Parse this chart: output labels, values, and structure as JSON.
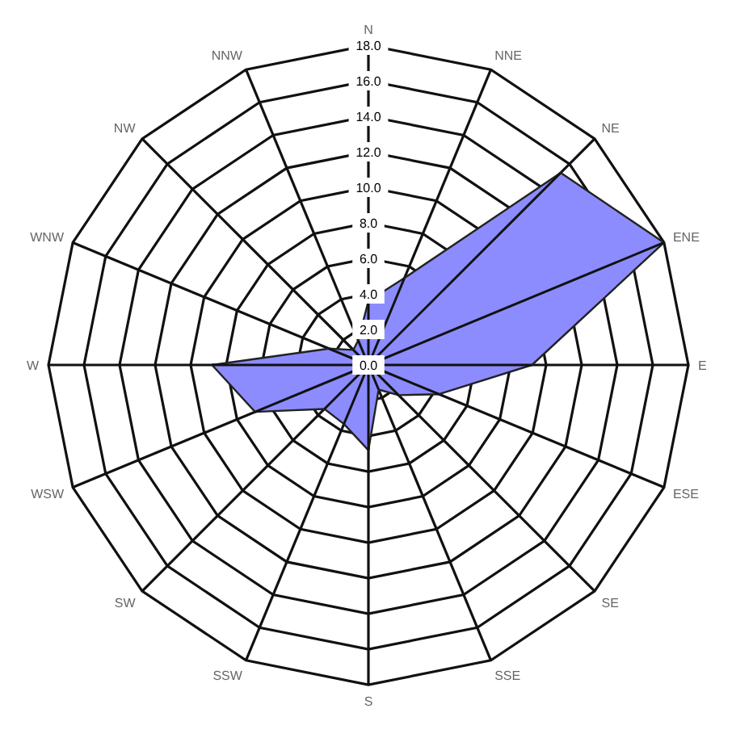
{
  "chart_data": {
    "type": "radar",
    "categories": [
      "N",
      "NNE",
      "NE",
      "ENE",
      "E",
      "ESE",
      "SE",
      "SSE",
      "S",
      "SSW",
      "SW",
      "WSW",
      "W",
      "WNW",
      "NW",
      "NNW"
    ],
    "series": [
      {
        "color": "#8c8cff",
        "values": [
          3.6,
          5.3,
          15.3,
          18,
          9.2,
          4.3,
          2.4,
          1.5,
          4.8,
          3.6,
          3.5,
          6.9,
          8.8,
          2.4,
          1.2,
          1.5
        ]
      }
    ],
    "ylim": [
      0,
      18
    ],
    "yticks": [
      {
        "value": 0,
        "label": "0.0"
      },
      {
        "value": 2,
        "label": "2.0"
      },
      {
        "value": 4,
        "label": "4.0"
      },
      {
        "value": 6,
        "label": "6.0"
      },
      {
        "value": 8,
        "label": "8.0"
      },
      {
        "value": 10,
        "label": "10.0"
      },
      {
        "value": 12,
        "label": "12.0"
      },
      {
        "value": 14,
        "label": "14.0"
      },
      {
        "value": 16,
        "label": "16.0"
      },
      {
        "value": 18,
        "label": "18.0"
      }
    ],
    "grid": true
  }
}
